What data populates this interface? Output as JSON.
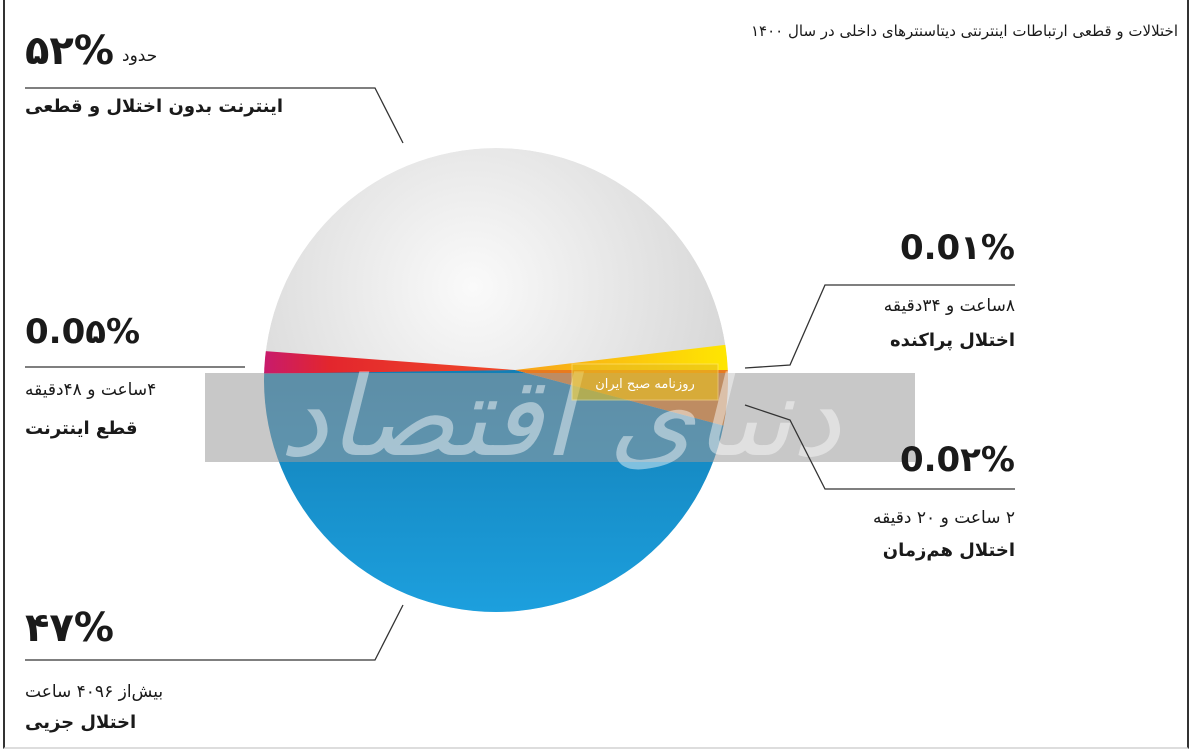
{
  "chart_data": {
    "type": "pie",
    "title": "اختلالات و قطعی ارتباطات اینترنتی دیتاسنترهای داخلی در سال ۱۴۰۰",
    "slices": [
      {
        "label": "اینترنت بدون اختلال و قطعی",
        "value": 52,
        "display": "۵۲%",
        "prefix": "حدود",
        "detail": "",
        "color": "#e4e4e4"
      },
      {
        "label": "اختلال جزیی",
        "value": 47,
        "display": "۴۷%",
        "detail": "بیش‌از ۴۰۹۶ ساعت",
        "color": "#1c9ad6"
      },
      {
        "label": "قطع اینترنت",
        "value": 0.05,
        "display": "0.0۵%",
        "detail": "۴ساعت و ۴۸دقیقه",
        "color": "#e3262d"
      },
      {
        "label": "اختلال پراکنده",
        "value": 0.01,
        "display": "0.0۱%",
        "detail": "۸ساعت و ۳۴دقیقه",
        "color": "#ffe000"
      },
      {
        "label": "اختلال هم‌زمان",
        "value": 0.02,
        "display": "0.0۲%",
        "detail": "۲ ساعت و ۲۰ دقیقه",
        "color": "#e87a1e"
      }
    ]
  },
  "watermark": {
    "logo": "دنیای اقتصاد",
    "tag": "روزنامه صبح ایران"
  }
}
